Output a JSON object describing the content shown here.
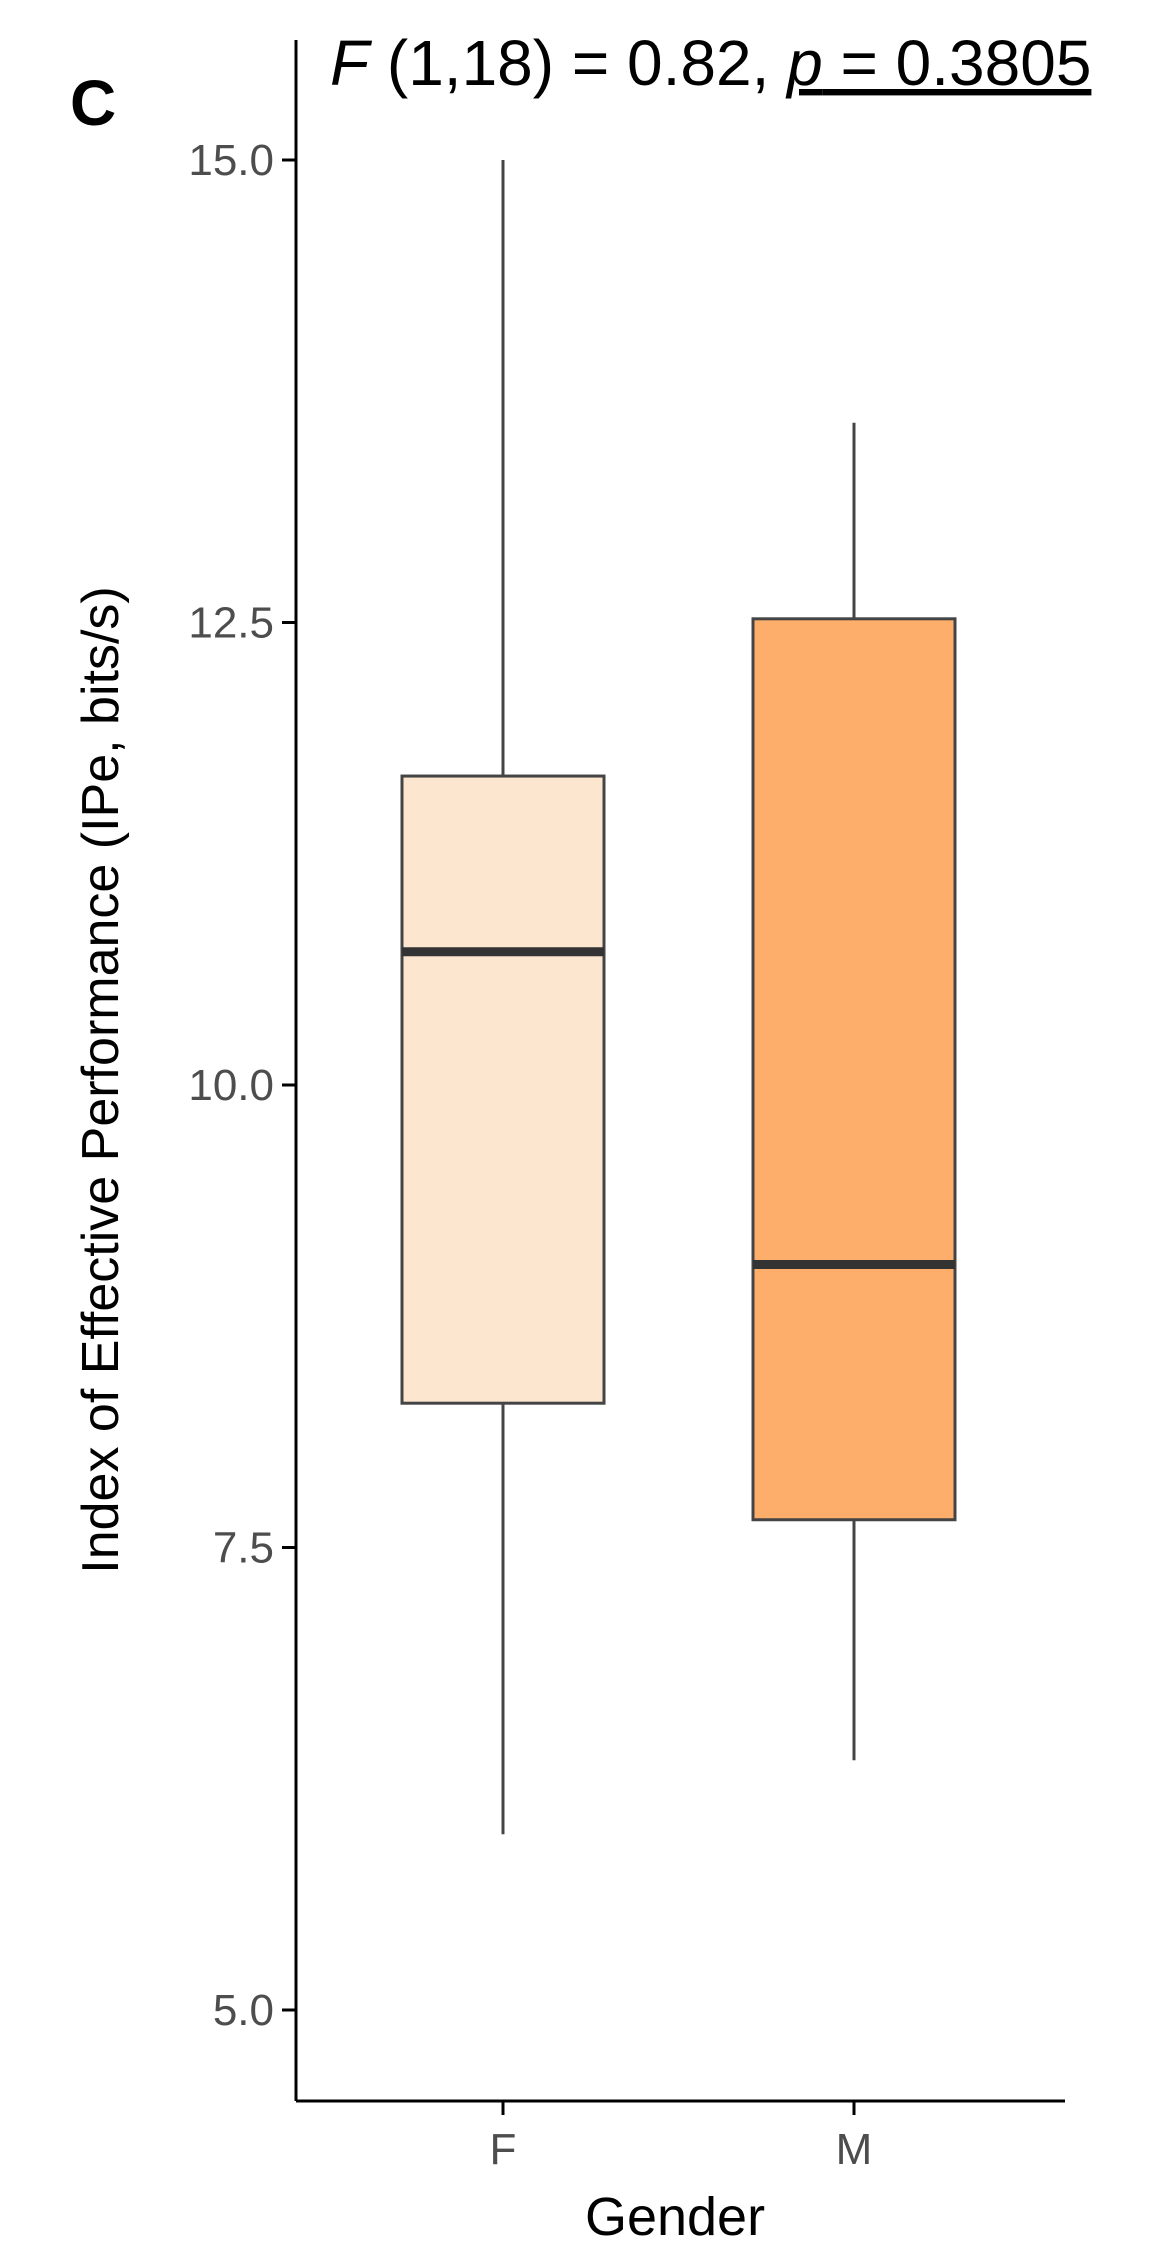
{
  "panel_label": "C",
  "stats": {
    "f_symbol": "F",
    "f_rest": " (1,18) = 0.82, ",
    "p_symbol": "p",
    "p_rest": " = 0.3805"
  },
  "colors": {
    "F": "#fde6d0",
    "M": "#fdae6b",
    "outline": "#444444",
    "median": "#333333",
    "axis": "#000000",
    "tick_label": "#4d4d4d"
  },
  "chart_data": {
    "type": "boxplot",
    "title": "F (1,18) = 0.82, p = 0.3805",
    "xlabel": "Gender",
    "ylabel": "Index of Effective Performance (IPe, bits/s)",
    "ylim": [
      4.5,
      15.3
    ],
    "yticks": [
      5.0,
      7.5,
      10.0,
      12.5,
      15.0
    ],
    "ytick_labels": [
      "5.0",
      "7.5",
      "10.0",
      "12.5",
      "15.0"
    ],
    "categories": [
      "F",
      "M"
    ],
    "grid": false,
    "legend": "none",
    "boxes": [
      {
        "category": "F",
        "whisker_low": 5.95,
        "q1": 8.28,
        "median": 10.72,
        "q3": 11.67,
        "whisker_high": 15.0
      },
      {
        "category": "M",
        "whisker_low": 6.35,
        "q1": 7.65,
        "median": 9.03,
        "q3": 12.52,
        "whisker_high": 13.58
      }
    ]
  }
}
